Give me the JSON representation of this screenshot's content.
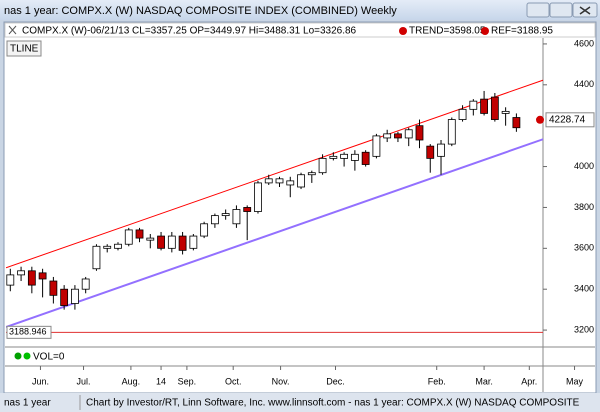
{
  "window": {
    "title": "nas 1 year: COMPX.X (W) NASDAQ COMPOSITE INDEX (COMBINED) Weekly"
  },
  "toolbar": {
    "tline": "TLINE"
  },
  "legend": {
    "symbol": "COMPX.X (W)-06/21/13 CL=3357.25 OP=3449.97 Hi=3488.31 Lo=3326.86",
    "trend": "TREND=3598.05",
    "ref": "REF=3188.95"
  },
  "volume": {
    "label": "VOL=0"
  },
  "status": {
    "left": "nas 1 year",
    "text": "Chart by Investor/RT, Linn Software, Inc. www.linnsoft.com - nas 1 year: COMPX.X (W) NASDAQ COMPOSITE"
  },
  "chart_data": {
    "type": "candlestick",
    "up_color": "#ffffff",
    "down_color": "#c00000",
    "open": [
      3420,
      3470,
      3490,
      3480,
      3440,
      3400,
      3330,
      3400,
      3500,
      3600,
      3600,
      3620,
      3690,
      3640,
      3660,
      3600,
      3660,
      3600,
      3660,
      3720,
      3760,
      3720,
      3800,
      3780,
      3920,
      3920,
      3910,
      3900,
      3960,
      3970,
      4040,
      4040,
      4030,
      4070,
      4050,
      4140,
      4160,
      4140,
      4200,
      4100,
      4050,
      4110,
      4230,
      4280,
      4330,
      4340,
      4260,
      4240
    ],
    "high": [
      3500,
      3510,
      3510,
      3500,
      3460,
      3420,
      3420,
      3460,
      3620,
      3620,
      3630,
      3700,
      3700,
      3670,
      3680,
      3680,
      3680,
      3670,
      3730,
      3770,
      3790,
      3810,
      3810,
      3930,
      3960,
      3950,
      3950,
      3970,
      3980,
      4060,
      4070,
      4070,
      4080,
      4080,
      4160,
      4180,
      4170,
      4190,
      4230,
      4110,
      4130,
      4240,
      4300,
      4330,
      4370,
      4360,
      4290,
      4260
    ],
    "low": [
      3390,
      3440,
      3380,
      3360,
      3330,
      3300,
      3300,
      3380,
      3490,
      3580,
      3590,
      3610,
      3630,
      3600,
      3590,
      3580,
      3570,
      3590,
      3650,
      3700,
      3740,
      3700,
      3640,
      3770,
      3910,
      3900,
      3850,
      3890,
      3920,
      3960,
      4030,
      4000,
      3980,
      4000,
      4040,
      4120,
      4120,
      4100,
      4090,
      3970,
      3960,
      4100,
      4220,
      4250,
      4250,
      4220,
      4200,
      4170
    ],
    "close": [
      3470,
      3490,
      3420,
      3450,
      3370,
      3320,
      3400,
      3450,
      3610,
      3610,
      3620,
      3690,
      3650,
      3650,
      3600,
      3660,
      3590,
      3660,
      3720,
      3760,
      3770,
      3790,
      3780,
      3920,
      3940,
      3940,
      3930,
      3960,
      3970,
      4040,
      4050,
      4060,
      4060,
      4010,
      4150,
      4160,
      4140,
      4180,
      4130,
      4040,
      4110,
      4230,
      4280,
      4320,
      4260,
      4230,
      4270,
      4190
    ],
    "xlim": [
      -0.4,
      54.3
    ],
    "xticks": [
      {
        "value": 2.8,
        "label": "Jun."
      },
      {
        "value": 6.8,
        "label": "Jul."
      },
      {
        "value": 11.2,
        "label": "Aug."
      },
      {
        "value": 16.4,
        "label": "Sep."
      },
      {
        "value": 20.7,
        "label": "Oct."
      },
      {
        "value": 25.1,
        "label": "Nov."
      },
      {
        "value": 30.2,
        "label": "Dec."
      },
      14,
      {
        "value": 39.6,
        "label": "Feb."
      },
      {
        "value": 44.0,
        "label": "Mar."
      },
      {
        "value": 48.2,
        "label": "Apr."
      },
      {
        "value": 52.4,
        "label": "May"
      }
    ],
    "ylim": [
      3127,
      4629
    ],
    "yticks": [
      3200,
      3400,
      3600,
      3800,
      4000,
      4400,
      4600
    ],
    "trend_lines": [
      {
        "color": "#ff0000",
        "x": [
          -0.4,
          49.6
        ],
        "values": [
          3505,
          4425
        ]
      },
      {
        "color": "#9370ff",
        "x": [
          -0.4,
          49.6
        ],
        "values": [
          3215,
          4136
        ]
      }
    ],
    "ref_line": {
      "value": 3188.946,
      "color": "#e03030"
    },
    "last_price": 4228.74
  }
}
